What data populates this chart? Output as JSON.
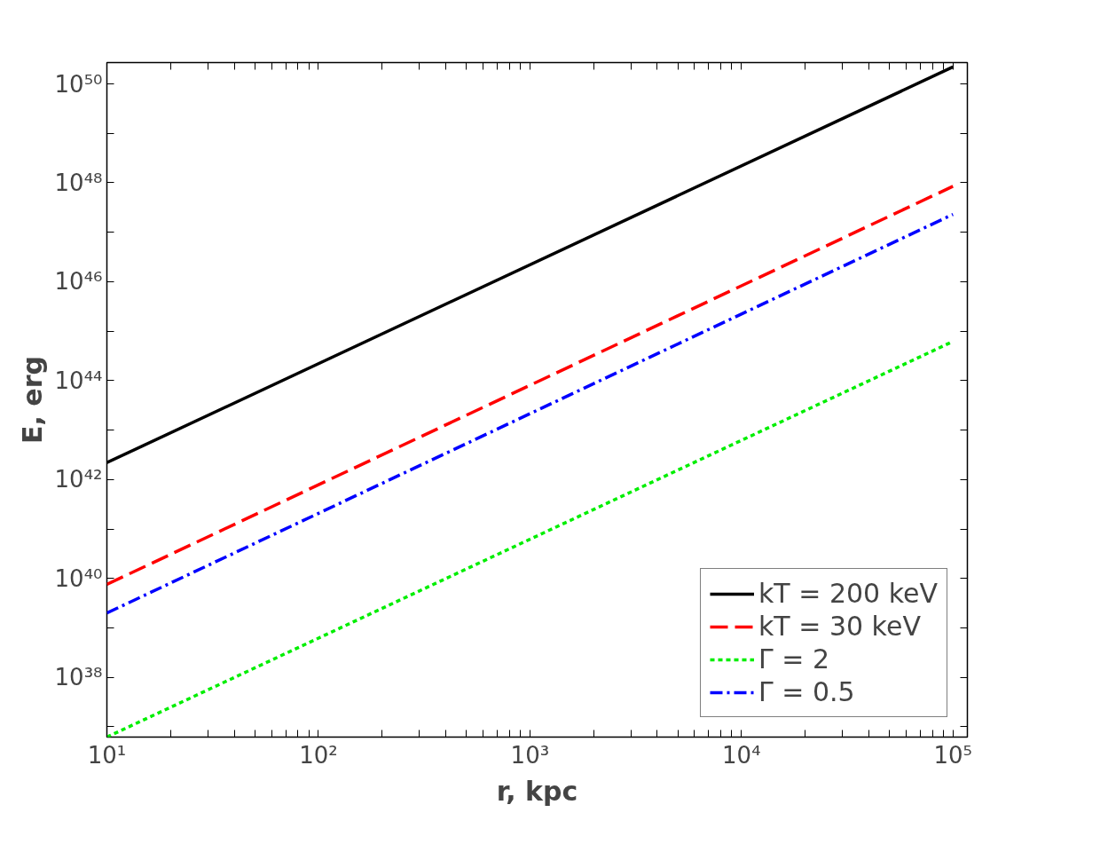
{
  "chart_data": {
    "type": "line",
    "xlabel": "r, kpc",
    "ylabel": "E, erg",
    "log": "xy",
    "grid": false,
    "legend": "bottom right",
    "x": [
      10,
      100000
    ],
    "series": [
      {
        "name": "kT = 200 keV",
        "color": "#000000",
        "line_style": "solid",
        "values": [
          2.2e+42,
          2.2e+50
        ]
      },
      {
        "name": "kT = 30 keV",
        "color": "#ff0000",
        "line_style": "dashed",
        "values": [
          7.6e+39,
          8.5e+47
        ]
      },
      {
        "name": "Γ = 2",
        "color": "#00ee00",
        "line_style": "dotted",
        "values": [
          6.2e+36,
          6.2e+44
        ]
      },
      {
        "name": "Γ = 0.5",
        "color": "#0000ff",
        "line_style": "dashdot",
        "values": [
          2e+39,
          2.3e+47
        ]
      }
    ],
    "xlim": [
      10,
      117000
    ],
    "ylim": [
      6.2e+36,
      2.7e+50
    ],
    "xticks": [
      {
        "value": 10,
        "label": "10¹"
      },
      {
        "value": 20,
        "label": null
      },
      {
        "value": 30,
        "label": null
      },
      {
        "value": 40,
        "label": null
      },
      {
        "value": 50,
        "label": null
      },
      {
        "value": 60,
        "label": null
      },
      {
        "value": 70,
        "label": null
      },
      {
        "value": 80,
        "label": null
      },
      {
        "value": 90,
        "label": null
      },
      {
        "value": 100,
        "label": "10²"
      },
      {
        "value": 200,
        "label": null
      },
      {
        "value": 300,
        "label": null
      },
      {
        "value": 400,
        "label": null
      },
      {
        "value": 500,
        "label": null
      },
      {
        "value": 600,
        "label": null
      },
      {
        "value": 700,
        "label": null
      },
      {
        "value": 800,
        "label": null
      },
      {
        "value": 900,
        "label": null
      },
      {
        "value": 1000,
        "label": "10³"
      },
      {
        "value": 2000,
        "label": null
      },
      {
        "value": 3000,
        "label": null
      },
      {
        "value": 4000,
        "label": null
      },
      {
        "value": 5000,
        "label": null
      },
      {
        "value": 6000,
        "label": null
      },
      {
        "value": 7000,
        "label": null
      },
      {
        "value": 8000,
        "label": null
      },
      {
        "value": 9000,
        "label": null
      },
      {
        "value": 10000,
        "label": "10⁴"
      },
      {
        "value": 20000,
        "label": null
      },
      {
        "value": 30000,
        "label": null
      },
      {
        "value": 40000,
        "label": null
      },
      {
        "value": 50000,
        "label": null
      },
      {
        "value": 60000,
        "label": null
      },
      {
        "value": 70000,
        "label": null
      },
      {
        "value": 80000,
        "label": null
      },
      {
        "value": 90000,
        "label": null
      },
      {
        "value": 100000,
        "label": "10⁵"
      }
    ],
    "yticks": [
      {
        "value": 1e+37,
        "label": null
      },
      {
        "value": 1e+38,
        "label": "10³⁸"
      },
      {
        "value": 1e+39,
        "label": null
      },
      {
        "value": 1e+40,
        "label": "10⁴⁰"
      },
      {
        "value": 1e+41,
        "label": null
      },
      {
        "value": 1e+42,
        "label": "10⁴²"
      },
      {
        "value": 1e+43,
        "label": null
      },
      {
        "value": 1e+44,
        "label": "10⁴⁴"
      },
      {
        "value": 1e+45,
        "label": null
      },
      {
        "value": 1e+46,
        "label": "10⁴⁶"
      },
      {
        "value": 1e+47,
        "label": null
      },
      {
        "value": 1e+48,
        "label": "10⁴⁸"
      },
      {
        "value": 1e+49,
        "label": null
      },
      {
        "value": 1e+50,
        "label": "10⁵⁰"
      }
    ]
  }
}
